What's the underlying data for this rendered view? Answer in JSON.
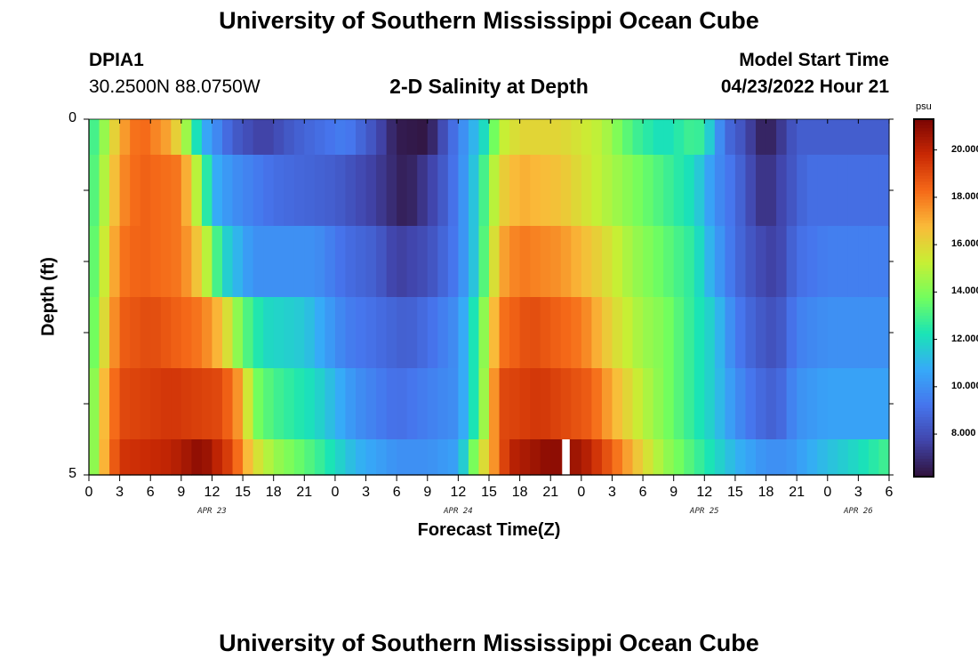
{
  "page": {
    "title_top": "University of Southern Mississippi Ocean Cube",
    "title_bottom": "University of Southern Mississippi Ocean Cube",
    "station_id": "DPIA1",
    "station_coords": "30.2500N  88.0750W",
    "subtitle": "2-D Salinity at Depth",
    "model_start_label": "Model Start Time",
    "model_start_value": "04/23/2022 Hour 21"
  },
  "chart_data": {
    "type": "heatmap",
    "title": "2-D Salinity at Depth",
    "xlabel": "Forecast Time(Z)",
    "ylabel": "Depth (ft)",
    "x_hours_range": [
      0,
      78
    ],
    "x_tick_labels": [
      "0",
      "3",
      "6",
      "9",
      "12",
      "15",
      "18",
      "21",
      "0",
      "3",
      "6",
      "9",
      "12",
      "15",
      "18",
      "21",
      "0",
      "3",
      "6",
      "9",
      "12",
      "15",
      "18",
      "21",
      "0",
      "3",
      "6"
    ],
    "date_labels": [
      {
        "text": "APR 23",
        "hour": 12
      },
      {
        "text": "APR 24",
        "hour": 36
      },
      {
        "text": "APR 25",
        "hour": 60
      },
      {
        "text": "APR 26",
        "hour": 75
      }
    ],
    "y_tick_labels": [
      {
        "text": "0",
        "depth": 0
      },
      {
        "text": "5",
        "depth": 5
      }
    ],
    "depth_range": [
      0,
      5
    ],
    "depth_bins": [
      0,
      0.5,
      1.5,
      2.5,
      3.5,
      4.5,
      5.0
    ],
    "colorbar": {
      "unit": "psu",
      "range": [
        6.2,
        21.3
      ],
      "tick_values": [
        8,
        10,
        12,
        14,
        16,
        18,
        20
      ],
      "tick_labels": [
        "8.000",
        "10.000",
        "12.000",
        "14.000",
        "16.000",
        "18.000",
        "20.000"
      ]
    },
    "gap_hour": 46,
    "keypoints": [
      [
        [
          0,
          12.5
        ],
        [
          1,
          13.5
        ],
        [
          3,
          17
        ],
        [
          5,
          18.5
        ],
        [
          8,
          17
        ],
        [
          9.5,
          14.5
        ],
        [
          11,
          11
        ],
        [
          14,
          8.5
        ],
        [
          17,
          7.5
        ],
        [
          20,
          8.5
        ],
        [
          25,
          9.5
        ],
        [
          28,
          8
        ],
        [
          30,
          6.5
        ],
        [
          33,
          6.3
        ],
        [
          35,
          8.5
        ],
        [
          37,
          10.5
        ],
        [
          39,
          12.5
        ],
        [
          40,
          15
        ],
        [
          42,
          16
        ],
        [
          46,
          16
        ],
        [
          50,
          15
        ],
        [
          53,
          13
        ],
        [
          56,
          12
        ],
        [
          59,
          13
        ],
        [
          60,
          12.5
        ],
        [
          62,
          9
        ],
        [
          64,
          8
        ],
        [
          65,
          7
        ],
        [
          66,
          6.5
        ],
        [
          67,
          7
        ],
        [
          69,
          8.5
        ],
        [
          72,
          8.5
        ],
        [
          78,
          8.5
        ]
      ],
      [
        [
          0,
          12.5
        ],
        [
          1,
          14
        ],
        [
          3,
          17.5
        ],
        [
          5,
          18.5
        ],
        [
          9,
          18
        ],
        [
          10,
          16
        ],
        [
          11,
          14
        ],
        [
          12,
          11
        ],
        [
          14,
          10
        ],
        [
          18,
          9
        ],
        [
          24,
          8.5
        ],
        [
          28,
          7.5
        ],
        [
          30,
          6.8
        ],
        [
          31,
          6.5
        ],
        [
          34,
          8
        ],
        [
          36,
          9.5
        ],
        [
          38,
          12
        ],
        [
          40,
          16
        ],
        [
          42,
          17
        ],
        [
          46,
          16.5
        ],
        [
          50,
          15
        ],
        [
          53,
          14
        ],
        [
          56,
          13
        ],
        [
          59,
          12
        ],
        [
          61,
          10
        ],
        [
          63,
          9
        ],
        [
          65,
          7.5
        ],
        [
          66,
          7
        ],
        [
          68,
          8
        ],
        [
          70,
          9
        ],
        [
          78,
          9
        ]
      ],
      [
        [
          0,
          12.5
        ],
        [
          1,
          14.5
        ],
        [
          3,
          18
        ],
        [
          5,
          18.5
        ],
        [
          9,
          18
        ],
        [
          11,
          16
        ],
        [
          12,
          14
        ],
        [
          13,
          12
        ],
        [
          16,
          10
        ],
        [
          22,
          10
        ],
        [
          25,
          9
        ],
        [
          28,
          8.5
        ],
        [
          30,
          7.5
        ],
        [
          33,
          8
        ],
        [
          36,
          9.5
        ],
        [
          38,
          12
        ],
        [
          40,
          17
        ],
        [
          42,
          18
        ],
        [
          46,
          17.5
        ],
        [
          50,
          16
        ],
        [
          53,
          14.5
        ],
        [
          56,
          13.5
        ],
        [
          59,
          12.5
        ],
        [
          61,
          10.5
        ],
        [
          63,
          9
        ],
        [
          65,
          8
        ],
        [
          67,
          7.5
        ],
        [
          69,
          9
        ],
        [
          72,
          9.5
        ],
        [
          78,
          9.5
        ]
      ],
      [
        [
          0,
          12.5
        ],
        [
          1,
          15
        ],
        [
          3,
          18.5
        ],
        [
          6,
          19
        ],
        [
          11,
          18
        ],
        [
          13,
          16.5
        ],
        [
          15,
          13.5
        ],
        [
          17,
          12
        ],
        [
          21,
          11.5
        ],
        [
          25,
          9.5
        ],
        [
          28,
          9
        ],
        [
          31,
          8.5
        ],
        [
          33,
          9
        ],
        [
          36,
          10
        ],
        [
          38,
          13
        ],
        [
          40,
          18
        ],
        [
          43,
          19
        ],
        [
          48,
          18
        ],
        [
          51,
          16
        ],
        [
          54,
          14.5
        ],
        [
          56,
          14
        ],
        [
          59,
          12.5
        ],
        [
          61,
          11.5
        ],
        [
          63,
          9.5
        ],
        [
          65,
          8.5
        ],
        [
          67,
          8
        ],
        [
          69,
          9.5
        ],
        [
          72,
          10
        ],
        [
          78,
          10
        ]
      ],
      [
        [
          0,
          12.5
        ],
        [
          1,
          16
        ],
        [
          3,
          19
        ],
        [
          8,
          19.5
        ],
        [
          13,
          19
        ],
        [
          15,
          17
        ],
        [
          16,
          14
        ],
        [
          18,
          13
        ],
        [
          22,
          12
        ],
        [
          26,
          10
        ],
        [
          30,
          9
        ],
        [
          33,
          9.5
        ],
        [
          36,
          10
        ],
        [
          38,
          13
        ],
        [
          40,
          19
        ],
        [
          44,
          19.5
        ],
        [
          49,
          18.5
        ],
        [
          51,
          17
        ],
        [
          54,
          15
        ],
        [
          56,
          14
        ],
        [
          59,
          12.5
        ],
        [
          61,
          11.5
        ],
        [
          63,
          10
        ],
        [
          65,
          9
        ],
        [
          67,
          8.5
        ],
        [
          69,
          10
        ],
        [
          72,
          10.5
        ],
        [
          78,
          10.5
        ]
      ],
      [
        [
          0,
          12.5
        ],
        [
          1,
          16
        ],
        [
          3,
          19.5
        ],
        [
          8,
          20
        ],
        [
          11,
          21
        ],
        [
          14,
          19
        ],
        [
          16,
          16
        ],
        [
          18,
          14.5
        ],
        [
          22,
          13
        ],
        [
          26,
          11
        ],
        [
          30,
          10
        ],
        [
          33,
          10
        ],
        [
          36,
          10.5
        ],
        [
          38,
          15
        ],
        [
          41,
          20
        ],
        [
          45,
          21
        ],
        [
          48,
          20.5
        ],
        [
          51,
          18.5
        ],
        [
          54,
          16
        ],
        [
          56,
          14.5
        ],
        [
          59,
          13
        ],
        [
          61,
          12
        ],
        [
          63,
          11
        ],
        [
          66,
          10
        ],
        [
          68,
          10
        ],
        [
          71,
          11
        ],
        [
          75,
          12
        ],
        [
          78,
          13
        ]
      ]
    ]
  }
}
